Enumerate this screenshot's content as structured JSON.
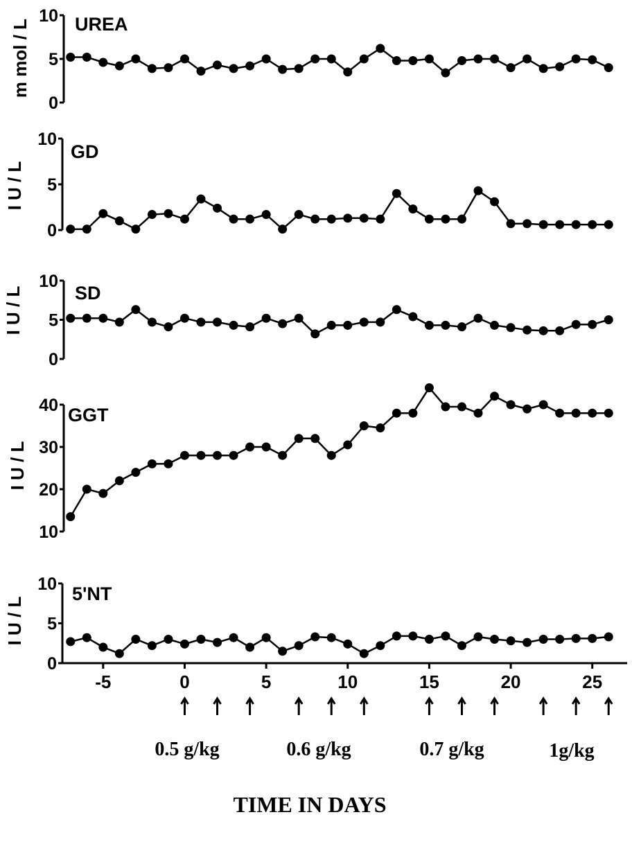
{
  "chart_data": [
    {
      "type": "line",
      "title": "UREA",
      "ylabel": "m mol / L",
      "ylim": [
        0,
        10
      ],
      "yticks": [
        "0",
        "5",
        "10"
      ],
      "x": [
        -7,
        -6,
        -5,
        -4,
        -3,
        -2,
        -1,
        0,
        1,
        2,
        3,
        4,
        5,
        6,
        7,
        8,
        9,
        10,
        11,
        12,
        13,
        14,
        15,
        16,
        17,
        18,
        19,
        20,
        21,
        22,
        23,
        24,
        25,
        26
      ],
      "values": [
        5.2,
        5.2,
        4.6,
        4.2,
        5.0,
        3.9,
        4.0,
        5.0,
        3.6,
        4.3,
        3.9,
        4.2,
        5.0,
        3.8,
        3.9,
        5.0,
        5.0,
        3.5,
        5.0,
        6.2,
        4.8,
        4.8,
        5.0,
        3.4,
        4.8,
        5.0,
        5.0,
        4.0,
        5.0,
        3.9,
        4.1,
        5.0,
        4.9,
        4.0
      ]
    },
    {
      "type": "line",
      "title": "GD",
      "ylabel": "I U / L",
      "ylim": [
        0,
        10
      ],
      "yticks": [
        "0",
        "5",
        "10"
      ],
      "x": [
        -7,
        -6,
        -5,
        -4,
        -3,
        -2,
        -1,
        0,
        1,
        2,
        3,
        4,
        5,
        6,
        7,
        8,
        9,
        10,
        11,
        12,
        13,
        14,
        15,
        16,
        17,
        18,
        19,
        20,
        21,
        22,
        23,
        24,
        25,
        26
      ],
      "values": [
        0.1,
        0.1,
        1.8,
        1.0,
        0.1,
        1.7,
        1.8,
        1.2,
        3.4,
        2.4,
        1.2,
        1.2,
        1.7,
        0.1,
        1.7,
        1.2,
        1.2,
        1.3,
        1.3,
        1.2,
        4.0,
        2.3,
        1.2,
        1.2,
        1.2,
        4.3,
        3.1,
        0.7,
        0.7,
        0.6,
        0.6,
        0.6,
        0.6,
        0.6
      ]
    },
    {
      "type": "line",
      "title": "SD",
      "ylabel": "I U / L",
      "ylim": [
        0,
        10
      ],
      "yticks": [
        "0",
        "5",
        "10"
      ],
      "x": [
        -7,
        -6,
        -5,
        -4,
        -3,
        -2,
        -1,
        0,
        1,
        2,
        3,
        4,
        5,
        6,
        7,
        8,
        9,
        10,
        11,
        12,
        13,
        14,
        15,
        16,
        17,
        18,
        19,
        20,
        21,
        22,
        23,
        24,
        25,
        26
      ],
      "values": [
        5.2,
        5.2,
        5.2,
        4.7,
        6.3,
        4.7,
        4.1,
        5.2,
        4.7,
        4.7,
        4.3,
        4.1,
        5.2,
        4.5,
        5.2,
        3.2,
        4.3,
        4.3,
        4.7,
        4.7,
        6.3,
        5.4,
        4.3,
        4.3,
        4.1,
        5.2,
        4.3,
        4.0,
        3.7,
        3.6,
        3.6,
        4.4,
        4.4,
        5.0
      ]
    },
    {
      "type": "line",
      "title": "GGT",
      "ylabel": "I U / L",
      "ylim": [
        10,
        40
      ],
      "yticks": [
        "10",
        "20",
        "30",
        "40"
      ],
      "x": [
        -7,
        -6,
        -5,
        -4,
        -3,
        -2,
        -1,
        0,
        1,
        2,
        3,
        4,
        5,
        6,
        7,
        8,
        9,
        10,
        11,
        12,
        13,
        14,
        15,
        16,
        17,
        18,
        19,
        20,
        21,
        22,
        23,
        24,
        25,
        26
      ],
      "values": [
        13.5,
        20.0,
        19.0,
        22.0,
        24.0,
        26.0,
        26.0,
        28.0,
        28.0,
        28.0,
        28.0,
        30.0,
        30.0,
        28.0,
        32.0,
        32.0,
        28.0,
        30.5,
        35.0,
        34.5,
        38.0,
        38.0,
        44.0,
        39.5,
        39.5,
        38.0,
        42.0,
        40.0,
        39.0,
        40.0,
        38.0,
        38.0,
        38.0,
        38.0
      ]
    },
    {
      "type": "line",
      "title": "5'NT",
      "ylabel": "I U / L",
      "ylim": [
        0,
        10
      ],
      "yticks": [
        "0",
        "5",
        "10"
      ],
      "x": [
        -7,
        -6,
        -5,
        -4,
        -3,
        -2,
        -1,
        0,
        1,
        2,
        3,
        4,
        5,
        6,
        7,
        8,
        9,
        10,
        11,
        12,
        13,
        14,
        15,
        16,
        17,
        18,
        19,
        20,
        21,
        22,
        23,
        24,
        25,
        26
      ],
      "values": [
        2.7,
        3.2,
        2.0,
        1.2,
        3.0,
        2.2,
        3.0,
        2.4,
        3.0,
        2.6,
        3.2,
        2.0,
        3.2,
        1.5,
        2.2,
        3.3,
        3.2,
        2.4,
        1.2,
        2.2,
        3.4,
        3.4,
        3.0,
        3.4,
        2.2,
        3.3,
        3.0,
        2.8,
        2.6,
        3.0,
        3.0,
        3.1,
        3.1,
        3.3
      ]
    }
  ],
  "x_axis": {
    "ticks": [
      "-5",
      "0",
      "5",
      "10",
      "15",
      "20",
      "25"
    ],
    "tick_values": [
      -5,
      0,
      5,
      10,
      15,
      20,
      25
    ],
    "xlim": [
      -7.5,
      26.5
    ],
    "title": "TIME IN DAYS"
  },
  "dose_arrows": [
    0,
    2,
    4,
    7,
    9,
    11,
    15,
    17,
    19,
    22,
    24,
    26
  ],
  "dose_labels": [
    "0.5 g/kg",
    "0.6 g/kg",
    "0.7 g/kg",
    "1g/kg"
  ]
}
